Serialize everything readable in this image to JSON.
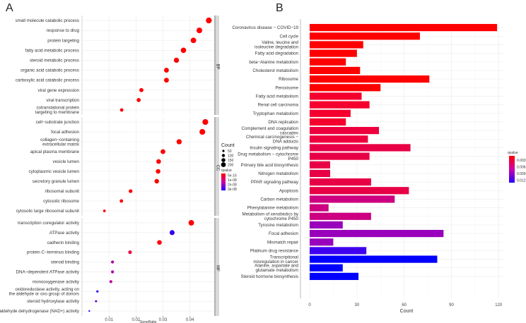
{
  "chart_data": [
    {
      "panel": "A",
      "type": "scatter",
      "xlabel": "GeneRatio",
      "xlim": [
        0,
        0.049
      ],
      "xticks": [
        "0.01",
        "0.02",
        "0.03",
        "0.04"
      ],
      "xtick_values": [
        0.01,
        0.02,
        0.03,
        0.04
      ],
      "facets": [
        {
          "name": "BP",
          "points": [
            {
              "term": "small molecule catabolic process",
              "x": 0.047,
              "count": 190,
              "color": "#FF0000"
            },
            {
              "term": "response to drug",
              "x": 0.0435,
              "count": 180,
              "color": "#FF0000"
            },
            {
              "term": "protein targeting",
              "x": 0.0413,
              "count": 170,
              "color": "#FF0000"
            },
            {
              "term": "fatty acid metabolic process",
              "x": 0.0376,
              "count": 160,
              "color": "#FF0000"
            },
            {
              "term": "steroid metabolic process",
              "x": 0.035,
              "count": 150,
              "color": "#FF0000"
            },
            {
              "term": "organic acid catabolic process",
              "x": 0.0313,
              "count": 130,
              "color": "#FF0000"
            },
            {
              "term": "carboxylic acid catabolic process",
              "x": 0.0313,
              "count": 130,
              "color": "#FF0000"
            },
            {
              "term": "viral gene expression",
              "x": 0.022,
              "count": 95,
              "color": "#FF0000"
            },
            {
              "term": "viral transcription",
              "x": 0.021,
              "count": 90,
              "color": "#FF0000"
            },
            {
              "term": "cotranslational protein\ntargeting to membrane",
              "x": 0.0147,
              "count": 65,
              "color": "#FF0000"
            }
          ]
        },
        {
          "name": "CC",
          "points": [
            {
              "term": "cell−substrate junction",
              "x": 0.0457,
              "count": 190,
              "color": "#FF0000"
            },
            {
              "term": "focal adhesion",
              "x": 0.0446,
              "count": 185,
              "color": "#FF0000"
            },
            {
              "term": "collagen−containing\nextracellular matrix",
              "x": 0.036,
              "count": 150,
              "color": "#FF0000"
            },
            {
              "term": "apical plasma membrane",
              "x": 0.03,
              "count": 125,
              "color": "#FF0000"
            },
            {
              "term": "vesicle lumen",
              "x": 0.0284,
              "count": 120,
              "color": "#FF0000"
            },
            {
              "term": "cytoplasmic vesicle lumen",
              "x": 0.0282,
              "count": 118,
              "color": "#FF0000"
            },
            {
              "term": "secretory granule lumen",
              "x": 0.0277,
              "count": 115,
              "color": "#FF0000"
            },
            {
              "term": "ribosomal subunit",
              "x": 0.018,
              "count": 78,
              "color": "#FF0000"
            },
            {
              "term": "cytosolic ribosome",
              "x": 0.0146,
              "count": 65,
              "color": "#FF0000"
            },
            {
              "term": "cytosolic large ribosomal subunit",
              "x": 0.0083,
              "count": 40,
              "color": "#FF0000"
            }
          ]
        },
        {
          "name": "MF",
          "points": [
            {
              "term": "transcription coregulator activity",
              "x": 0.0405,
              "count": 170,
              "color": "#FF0000"
            },
            {
              "term": "ATPase activity",
              "x": 0.0334,
              "count": 140,
              "color": "#3300EE"
            },
            {
              "term": "cadherin binding",
              "x": 0.0287,
              "count": 120,
              "color": "#FF0010"
            },
            {
              "term": "protein C−terminus binding",
              "x": 0.0178,
              "count": 75,
              "color": "#E8104A"
            },
            {
              "term": "steroid binding",
              "x": 0.0113,
              "count": 50,
              "color": "#AA00AA"
            },
            {
              "term": "DNA−dependent ATPase activity",
              "x": 0.0113,
              "count": 50,
              "color": "#AA00AA"
            },
            {
              "term": "monooxygenase activity",
              "x": 0.0107,
              "count": 48,
              "color": "#BB00A0"
            },
            {
              "term": "oxidoreductase activity, acting on\nthe aldehyde or oxo group of donors",
              "x": 0.0057,
              "count": 28,
              "color": "#3300EE"
            },
            {
              "term": "steroid hydroxylase activity",
              "x": 0.0052,
              "count": 26,
              "color": "#6600CC"
            },
            {
              "term": "aldehyde dehydrogenase (NAD+) activity",
              "x": 0.0027,
              "count": 15,
              "color": "#1100FF"
            }
          ]
        }
      ],
      "legend": {
        "size_title": "Count",
        "size_labels": [
          "50",
          "100",
          "150",
          "200"
        ],
        "color_title": "qvalue",
        "color_labels": [
          "5e-16",
          "1e-08",
          "2e-08",
          "3e-08"
        ],
        "placement": "right"
      }
    },
    {
      "panel": "B",
      "type": "bar",
      "orientation": "horizontal",
      "xlabel": "Count",
      "xlim": [
        0,
        123
      ],
      "xticks": [
        "0",
        "30",
        "60",
        "90",
        "120"
      ],
      "xtick_values": [
        0,
        30,
        60,
        90,
        120
      ],
      "bars": [
        {
          "term": "Coronavirus disease − COVID−19",
          "value": 119,
          "color": "#FF0000"
        },
        {
          "term": "Cell cycle",
          "value": 70,
          "color": "#FF0000"
        },
        {
          "term": "Valine, leucine and\nisoleucine degradation",
          "value": 34,
          "color": "#FF0000"
        },
        {
          "term": "Fatty acid degradation",
          "value": 30,
          "color": "#FF0000"
        },
        {
          "term": "beta−Alanine metabolism",
          "value": 23,
          "color": "#FF0000"
        },
        {
          "term": "Cholesterol metabolism",
          "value": 32,
          "color": "#FF0000"
        },
        {
          "term": "Ribosome",
          "value": 76,
          "color": "#FF0000"
        },
        {
          "term": "Peroxisome",
          "value": 45,
          "color": "#FF0000"
        },
        {
          "term": "Fatty acid metabolism",
          "value": 33,
          "color": "#F5002E"
        },
        {
          "term": "Renal cell carcinoma",
          "value": 38,
          "color": "#F5002E"
        },
        {
          "term": "Tryptophan metabolism",
          "value": 26,
          "color": "#F5002E"
        },
        {
          "term": "DNA replication",
          "value": 23,
          "color": "#F5002E"
        },
        {
          "term": "Complement and coagulation\ncascades",
          "value": 44,
          "color": "#EE003E"
        },
        {
          "term": "Chemical carcinogenesis −\nDNA adducts",
          "value": 37,
          "color": "#EE003E"
        },
        {
          "term": "Insulin signaling pathway",
          "value": 64,
          "color": "#E80046"
        },
        {
          "term": "Drug metabolism − cytochrome\nP450",
          "value": 38,
          "color": "#E80046"
        },
        {
          "term": "Primary bile acid biosynthesis",
          "value": 13,
          "color": "#E80046"
        },
        {
          "term": "Nitrogen metabolism",
          "value": 13,
          "color": "#E80046"
        },
        {
          "term": "PPAR signaling pathway",
          "value": 39,
          "color": "#E80046"
        },
        {
          "term": "Apoptosis",
          "value": 63,
          "color": "#E80046"
        },
        {
          "term": "Carbon metabolism",
          "value": 54,
          "color": "#CC0080"
        },
        {
          "term": "Phenylalanine metabolism",
          "value": 12,
          "color": "#CC0080"
        },
        {
          "term": "Metabolism of xenobiotics by\ncytochrome P450",
          "value": 39,
          "color": "#CC0080"
        },
        {
          "term": "Tyrosine metabolism",
          "value": 21,
          "color": "#9900BB"
        },
        {
          "term": "Focal adhesion",
          "value": 85,
          "color": "#9900BB"
        },
        {
          "term": "Mismatch repair",
          "value": 15,
          "color": "#9900BB"
        },
        {
          "term": "Platinum drug resistance",
          "value": 36,
          "color": "#4000F0"
        },
        {
          "term": "Transcriptional\nmisregulation in cancer",
          "value": 81,
          "color": "#0000FF"
        },
        {
          "term": "Alanine, aspartate and\nglutamate metabolism",
          "value": 21,
          "color": "#0000FF"
        },
        {
          "term": "Steroid hormone biosynthesis",
          "value": 31,
          "color": "#0000FF"
        }
      ],
      "legend": {
        "color_title": "qvalue",
        "color_labels": [
          "0.003",
          "0.006",
          "0.009",
          "0.012"
        ],
        "placement": "right"
      }
    }
  ],
  "panel_labels": [
    "A",
    "B"
  ]
}
